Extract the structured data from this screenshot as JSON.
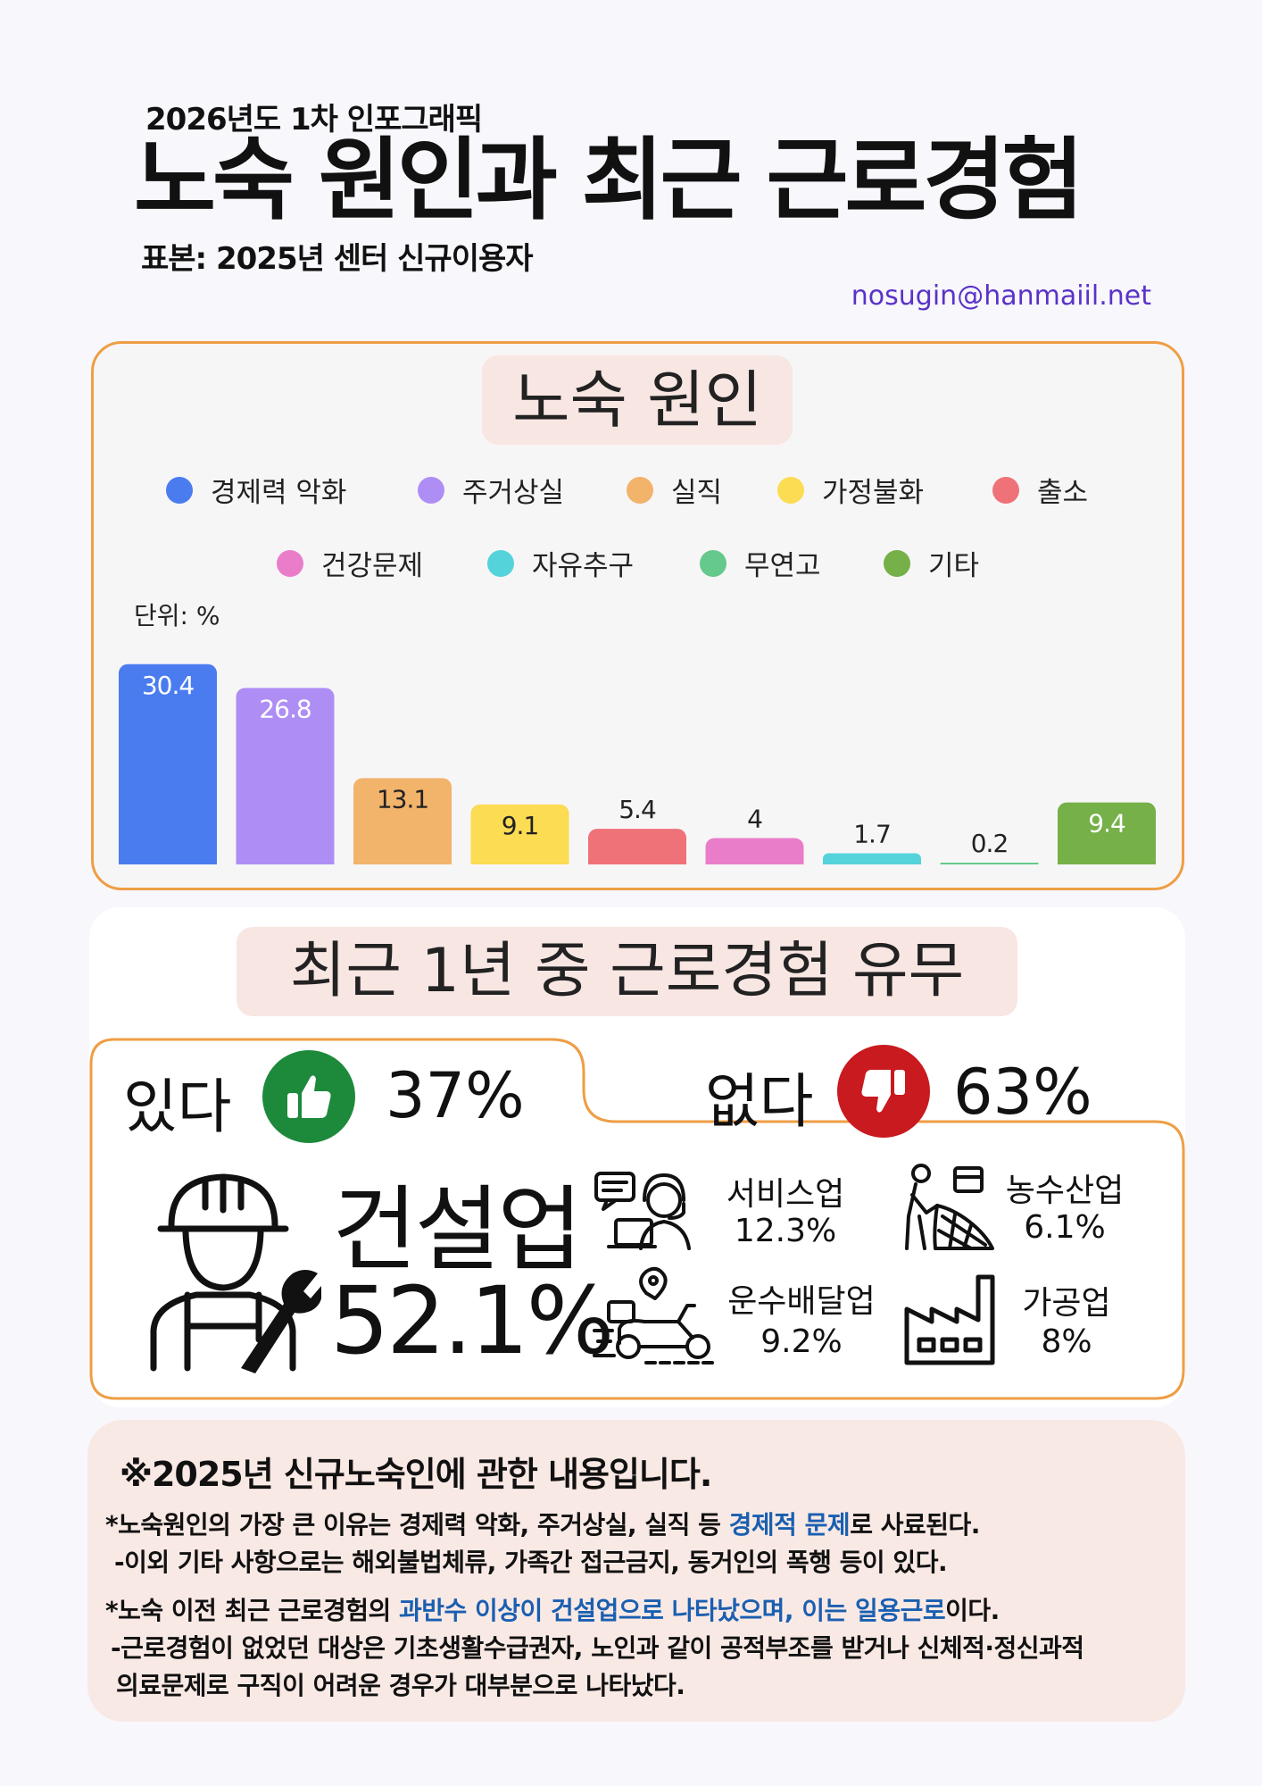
{
  "header": {
    "subtitle": "2026년도 1차 인포그래픽",
    "title": "노숙 원인과 최근 근로경험",
    "sample": "표본: 2025년 센터 신규이용자",
    "email": "nosugin@hanmaiil.net"
  },
  "causes": {
    "title": "노숙 원인",
    "unit": "단위: %",
    "legend": [
      {
        "label": "경제력 악화",
        "color": "#4a7cf0"
      },
      {
        "label": "주거상실",
        "color": "#ae8ef5"
      },
      {
        "label": "실직",
        "color": "#f2b36b"
      },
      {
        "label": "가정불화",
        "color": "#fbdc52"
      },
      {
        "label": "출소",
        "color": "#ef7279"
      },
      {
        "label": "건강문제",
        "color": "#ea7dca"
      },
      {
        "label": "자유추구",
        "color": "#55d3da"
      },
      {
        "label": "무연고",
        "color": "#64c98a"
      },
      {
        "label": "기타",
        "color": "#75b048"
      }
    ]
  },
  "chart_data": {
    "type": "bar",
    "title": "노숙 원인",
    "unit": "단위: %",
    "categories": [
      "경제력 악화",
      "주거상실",
      "실직",
      "가정불화",
      "출소",
      "건강문제",
      "자유추구",
      "무연고",
      "기타"
    ],
    "values": [
      30.4,
      26.8,
      13.1,
      9.1,
      5.4,
      4,
      1.7,
      0.2,
      9.4
    ],
    "value_labels": [
      "30.4",
      "26.8",
      "13.1",
      "9.1",
      "5.4",
      "4",
      "1.7",
      "0.2",
      "9.4"
    ],
    "colors": [
      "#4a7cf0",
      "#ae8ef5",
      "#f2b36b",
      "#fbdc52",
      "#ef7279",
      "#ea7dca",
      "#55d3da",
      "#64c98a",
      "#75b048"
    ],
    "ylim": [
      0,
      32
    ],
    "grid": false,
    "legend": "top"
  },
  "work": {
    "title": "최근 1년 중 근로경험 유무",
    "yes_label": "있다",
    "yes_pct": "37%",
    "no_label": "없다",
    "no_pct": "63%",
    "top_industry": {
      "name": "건설업",
      "pct": "52.1%"
    },
    "industries": [
      {
        "name": "서비스업",
        "pct": "12.3%"
      },
      {
        "name": "농수산업",
        "pct": "6.1%"
      },
      {
        "name": "운수배달업",
        "pct": "9.2%"
      },
      {
        "name": "가공업",
        "pct": "8%"
      }
    ]
  },
  "notes": {
    "heading": "※2025년 신규노숙인에 관한 내용입니다.",
    "line1_a": "*노숙원인의 가장 큰 이유는 경제력 악화, 주거상실, 실직 등 ",
    "line1_hl": "경제적 문제",
    "line1_b": "로 사료된다.",
    "line2": "-이외 기타 사항으로는 해외불법체류, 가족간 접근금지, 동거인의 폭행 등이 있다.",
    "line3_a": "*노숙 이전 최근 근로경험의 ",
    "line3_hl": "과반수 이상이 건설업으로 나타났으며, 이는 일용근로",
    "line3_b": "이다.",
    "line4": "-근로경험이 없었던 대상은 기초생활수급권자, 노인과 같이 공적부조를 받거나 신체적·정신과적",
    "line5": "의료문제로 구직이 어려운 경우가 대부분으로 나타났다."
  }
}
